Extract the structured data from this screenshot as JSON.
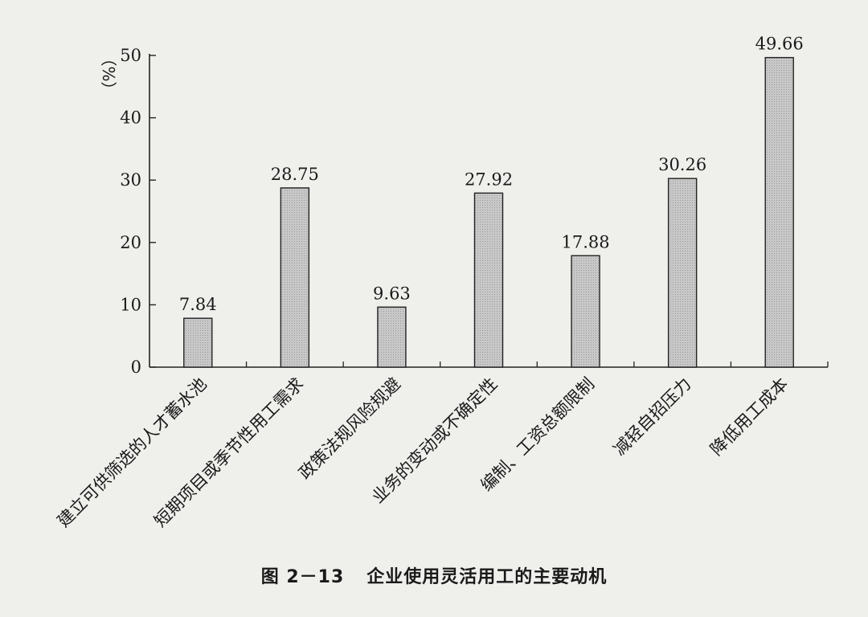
{
  "chart_data": {
    "type": "bar",
    "categories": [
      "建立可供筛选的人才蓄水池",
      "短期项目或季节性用工需求",
      "政策法规风险规避",
      "业务的变动或不确定性",
      "编制、工资总额限制",
      "减轻自招压力",
      "降低用工成本"
    ],
    "values": [
      7.84,
      28.75,
      9.63,
      27.92,
      17.88,
      30.26,
      49.66
    ],
    "data_labels": [
      "7.84",
      "28.75",
      "9.63",
      "27.92",
      "17.88",
      "30.26",
      "49.66"
    ],
    "y_unit_label": "（%）",
    "ylim": [
      0,
      50
    ],
    "yticks": [
      0,
      10,
      20,
      30,
      40,
      50
    ],
    "grid": false,
    "bar_color": "#c8c8c8",
    "caption_number": "图 2－13",
    "caption_title": "企业使用灵活用工的主要动机"
  }
}
